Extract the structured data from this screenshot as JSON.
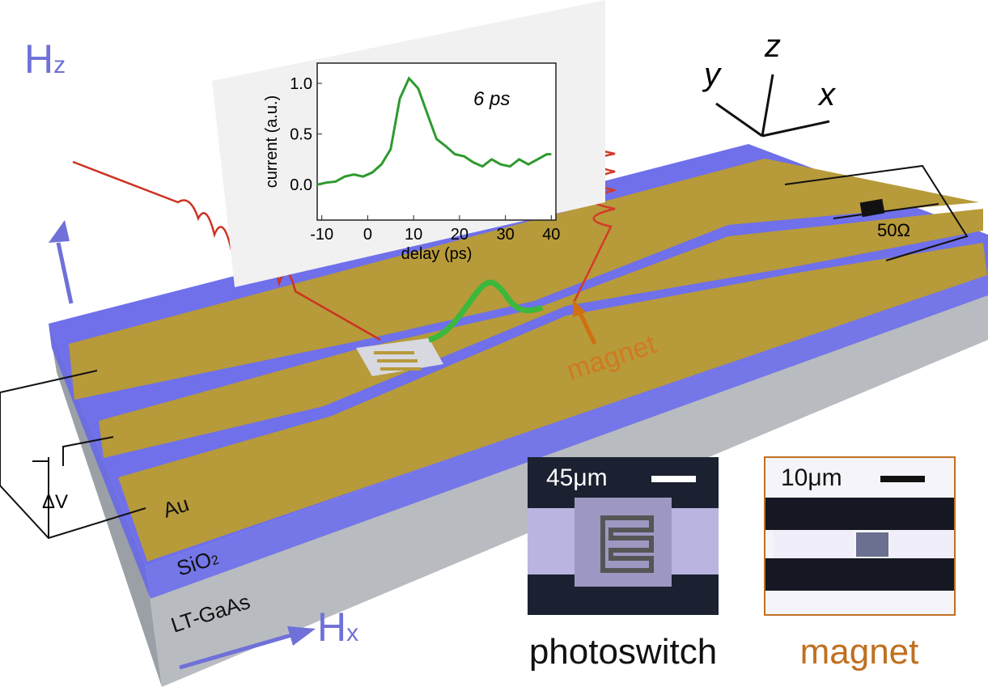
{
  "labels": {
    "hz": "H",
    "hz_sub": "z",
    "hx": "H",
    "hx_sub": "x",
    "axis_x": "x",
    "axis_y": "y",
    "axis_z": "z",
    "resistor": "50Ω",
    "voltage": "ΔV",
    "au": "Au",
    "sio2": "SiO",
    "sio2_sub": "2",
    "substrate": "LT-GaAs",
    "magnet_arrow": "magnet"
  },
  "insets": [
    {
      "scale": "45μm",
      "caption": "photoswitch"
    },
    {
      "scale": "10μm",
      "caption": "magnet"
    }
  ],
  "chart_data": {
    "type": "line",
    "annotation": "6 ps",
    "x_label": "delay (ps)",
    "y_label": "current (a.u.)",
    "xlim": [
      -11,
      41
    ],
    "ylim": [
      -0.35,
      1.2
    ],
    "xticks": [
      -10,
      0,
      10,
      20,
      30,
      40
    ],
    "yticks": [
      {
        "value": 0,
        "label": "0.0"
      },
      {
        "value": 0.5,
        "label": "0.5"
      },
      {
        "value": 1,
        "label": "1.0"
      }
    ],
    "x": [
      -11,
      -9,
      -7,
      -5,
      -3,
      -1,
      1,
      3,
      5,
      7,
      9,
      11,
      13,
      15,
      17,
      19,
      21,
      23,
      25,
      27,
      29,
      31,
      33,
      35,
      37,
      39,
      40
    ],
    "series": [
      {
        "color": "#2e9a2e",
        "values": [
          0.0,
          0.02,
          0.03,
          0.08,
          0.1,
          0.08,
          0.12,
          0.2,
          0.35,
          0.85,
          1.05,
          0.95,
          0.7,
          0.45,
          0.38,
          0.3,
          0.28,
          0.22,
          0.18,
          0.25,
          0.2,
          0.18,
          0.25,
          0.2,
          0.25,
          0.3,
          0.3
        ]
      }
    ]
  }
}
